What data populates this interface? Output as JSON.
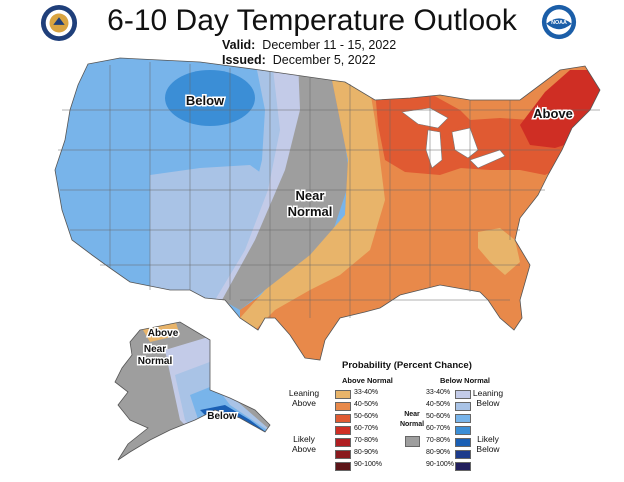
{
  "title": "6-10 Day Temperature Outlook",
  "valid_label": "Valid:",
  "valid_dates": "December 11 - 15, 2022",
  "issued_label": "Issued:",
  "issued_date": "December 5, 2022",
  "logos": {
    "left": "noaa-department-seal",
    "right": "noaa-logo"
  },
  "map_labels": {
    "below_west": "Below",
    "near_normal_line1": "Near",
    "near_normal_line2": "Normal",
    "above_ne": "Above",
    "ak_above": "Above",
    "ak_near_line1": "Near",
    "ak_near_line2": "Normal",
    "ak_below": "Below"
  },
  "legend": {
    "title": "Probability (Percent Chance)",
    "above_header": "Above Normal",
    "below_header": "Below Normal",
    "near_label_line1": "Near",
    "near_label_line2": "Normal",
    "leaning_above_line1": "Leaning",
    "leaning_above_line2": "Above",
    "likely_above_line1": "Likely",
    "likely_above_line2": "Above",
    "leaning_below_line1": "Leaning",
    "leaning_below_line2": "Below",
    "likely_below_line1": "Likely",
    "likely_below_line2": "Below",
    "above": [
      {
        "range": "33-40%",
        "color": "#e8b46a"
      },
      {
        "range": "40-50%",
        "color": "#e8894a"
      },
      {
        "range": "50-60%",
        "color": "#e05a32"
      },
      {
        "range": "60-70%",
        "color": "#cf2e24"
      },
      {
        "range": "70-80%",
        "color": "#b01e22"
      },
      {
        "range": "80-90%",
        "color": "#8a1a1e"
      },
      {
        "range": "90-100%",
        "color": "#5c1518"
      }
    ],
    "below": [
      {
        "range": "33-40%",
        "color": "#c3cbe8"
      },
      {
        "range": "40-50%",
        "color": "#a9c3e6"
      },
      {
        "range": "50-60%",
        "color": "#78b4ea"
      },
      {
        "range": "60-70%",
        "color": "#3b8ed6"
      },
      {
        "range": "70-80%",
        "color": "#1a5fb4"
      },
      {
        "range": "80-90%",
        "color": "#1d3b8c"
      },
      {
        "range": "90-100%",
        "color": "#221f5e"
      }
    ],
    "near_color": "#9e9e9e"
  }
}
